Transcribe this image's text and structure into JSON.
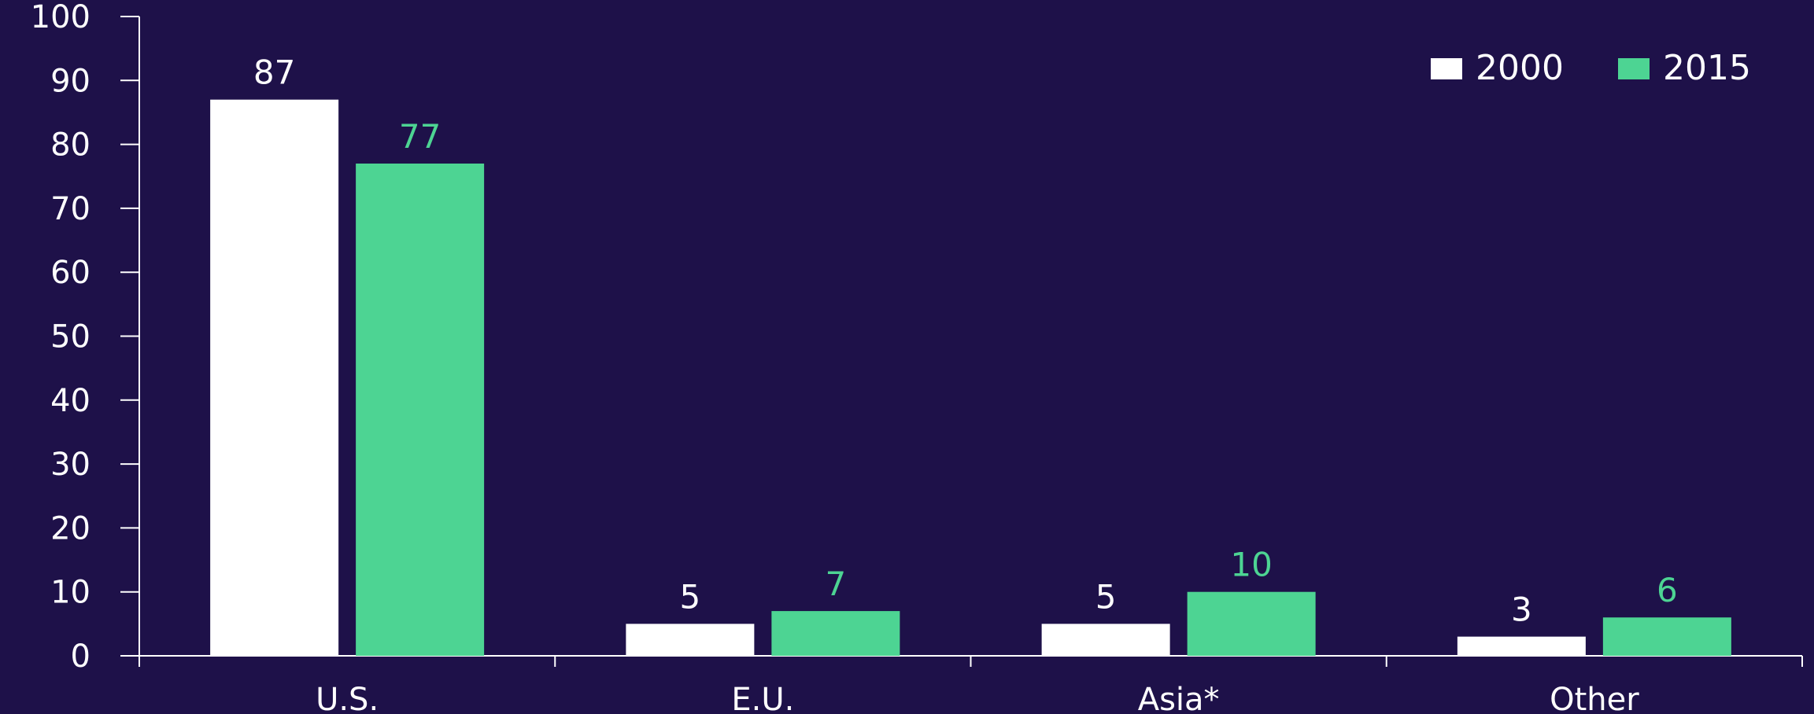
{
  "colors": {
    "background": "#1e1149",
    "axis": "#ffffff",
    "series_2000": "#ffffff",
    "series_2015": "#4dd493",
    "label_2000": "#ffffff",
    "label_2015": "#4dd493"
  },
  "chart_data": {
    "type": "bar",
    "title": "",
    "xlabel": "",
    "ylabel": "",
    "categories": [
      "U.S.",
      "E.U.",
      "Asia*",
      "Other"
    ],
    "series": [
      {
        "name": "2000",
        "values": [
          87,
          5,
          5,
          3
        ]
      },
      {
        "name": "2015",
        "values": [
          77,
          7,
          10,
          6
        ]
      }
    ],
    "ylim": [
      0,
      100
    ],
    "yticks": [
      0,
      10,
      20,
      30,
      40,
      50,
      60,
      70,
      80,
      90,
      100
    ],
    "data_labels": true,
    "grid": false,
    "legend_position": "top-right"
  }
}
